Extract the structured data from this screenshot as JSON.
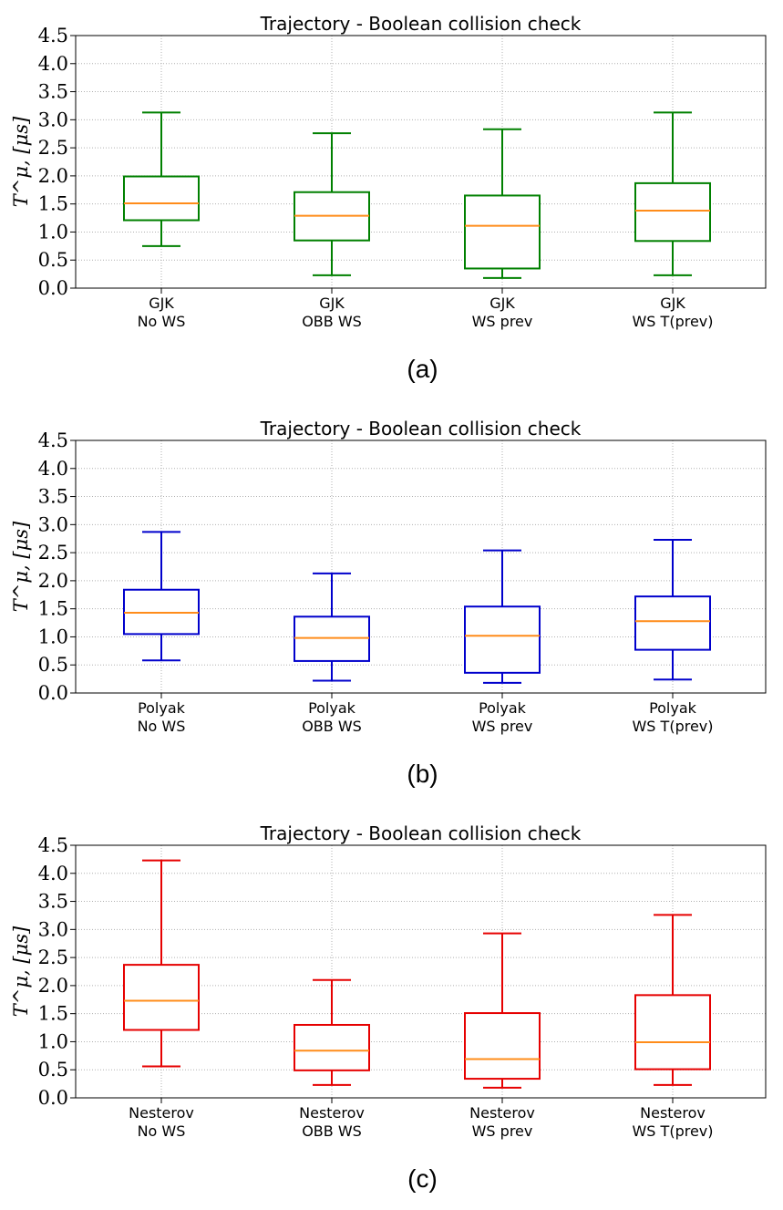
{
  "chart_data": [
    {
      "type": "box",
      "title": "Trajectory - Boolean collision check",
      "ylabel": "T^μ, [μs]",
      "ylim": [
        0,
        4.5
      ],
      "yticks": [
        "0.0",
        "0.5",
        "1.0",
        "1.5",
        "2.0",
        "2.5",
        "3.0",
        "3.5",
        "4.0",
        "4.5"
      ],
      "grid": true,
      "box_color": "#008000",
      "median_color": "#ff8c1a",
      "caption": "(a)",
      "categories": [
        {
          "line1": "GJK",
          "line2": "No WS",
          "whisker_low": 0.75,
          "q1": 1.21,
          "median": 1.51,
          "q3": 1.99,
          "whisker_high": 3.13
        },
        {
          "line1": "GJK",
          "line2": "OBB WS",
          "whisker_low": 0.23,
          "q1": 0.85,
          "median": 1.29,
          "q3": 1.71,
          "whisker_high": 2.76
        },
        {
          "line1": "GJK",
          "line2": "WS prev",
          "whisker_low": 0.18,
          "q1": 0.35,
          "median": 1.11,
          "q3": 1.65,
          "whisker_high": 2.83
        },
        {
          "line1": "GJK",
          "line2": "WS T(prev)",
          "whisker_low": 0.23,
          "q1": 0.84,
          "median": 1.38,
          "q3": 1.87,
          "whisker_high": 3.13
        }
      ]
    },
    {
      "type": "box",
      "title": "Trajectory - Boolean collision check",
      "ylabel": "T^μ, [μs]",
      "ylim": [
        0,
        4.5
      ],
      "yticks": [
        "0.0",
        "0.5",
        "1.0",
        "1.5",
        "2.0",
        "2.5",
        "3.0",
        "3.5",
        "4.0",
        "4.5"
      ],
      "grid": true,
      "box_color": "#0000cc",
      "median_color": "#ff8c1a",
      "caption": "(b)",
      "categories": [
        {
          "line1": "Polyak",
          "line2": "No WS",
          "whisker_low": 0.58,
          "q1": 1.05,
          "median": 1.43,
          "q3": 1.84,
          "whisker_high": 2.87
        },
        {
          "line1": "Polyak",
          "line2": "OBB WS",
          "whisker_low": 0.22,
          "q1": 0.57,
          "median": 0.98,
          "q3": 1.36,
          "whisker_high": 2.13
        },
        {
          "line1": "Polyak",
          "line2": "WS prev",
          "whisker_low": 0.18,
          "q1": 0.36,
          "median": 1.02,
          "q3": 1.54,
          "whisker_high": 2.54
        },
        {
          "line1": "Polyak",
          "line2": "WS T(prev)",
          "whisker_low": 0.24,
          "q1": 0.77,
          "median": 1.28,
          "q3": 1.72,
          "whisker_high": 2.73
        }
      ]
    },
    {
      "type": "box",
      "title": "Trajectory - Boolean collision check",
      "ylabel": "T^μ, [μs]",
      "ylim": [
        0,
        4.5
      ],
      "yticks": [
        "0.0",
        "0.5",
        "1.0",
        "1.5",
        "2.0",
        "2.5",
        "3.0",
        "3.5",
        "4.0",
        "4.5"
      ],
      "grid": true,
      "box_color": "#e60000",
      "median_color": "#ff8c1a",
      "caption": "(c)",
      "categories": [
        {
          "line1": "Nesterov",
          "line2": "No WS",
          "whisker_low": 0.56,
          "q1": 1.21,
          "median": 1.73,
          "q3": 2.37,
          "whisker_high": 4.23
        },
        {
          "line1": "Nesterov",
          "line2": "OBB WS",
          "whisker_low": 0.23,
          "q1": 0.49,
          "median": 0.84,
          "q3": 1.3,
          "whisker_high": 2.1
        },
        {
          "line1": "Nesterov",
          "line2": "WS prev",
          "whisker_low": 0.18,
          "q1": 0.34,
          "median": 0.69,
          "q3": 1.51,
          "whisker_high": 2.93
        },
        {
          "line1": "Nesterov",
          "line2": "WS T(prev)",
          "whisker_low": 0.23,
          "q1": 0.51,
          "median": 0.99,
          "q3": 1.83,
          "whisker_high": 3.26
        }
      ]
    }
  ]
}
